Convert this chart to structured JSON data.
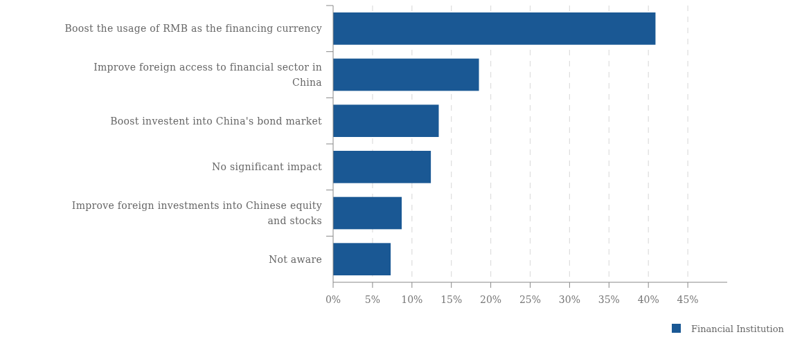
{
  "chart_data": {
    "type": "bar",
    "orientation": "horizontal",
    "categories": [
      "Boost the usage of RMB as the financing currency",
      "Improve foreign access to financial sector in China",
      "Boost investent into China's bond market",
      "No significant impact",
      "Improve foreign investments into Chinese equity and stocks",
      "Not aware"
    ],
    "series": [
      {
        "name": "Financial Institution",
        "color": "#1a5894",
        "values": [
          40.9,
          18.5,
          13.4,
          12.4,
          8.7,
          7.3
        ]
      }
    ],
    "xlim": [
      0,
      50
    ],
    "xticks": [
      {
        "value": 0,
        "label": "0%"
      },
      {
        "value": 5,
        "label": "5%"
      },
      {
        "value": 10,
        "label": "10%"
      },
      {
        "value": 15,
        "label": "15%"
      },
      {
        "value": 20,
        "label": "20%"
      },
      {
        "value": 25,
        "label": "25%"
      },
      {
        "value": 30,
        "label": "30%"
      },
      {
        "value": 35,
        "label": "35%"
      },
      {
        "value": 40,
        "label": "40%"
      },
      {
        "value": 45,
        "label": "45%"
      }
    ],
    "grid": "x",
    "legend": "bottom right"
  }
}
